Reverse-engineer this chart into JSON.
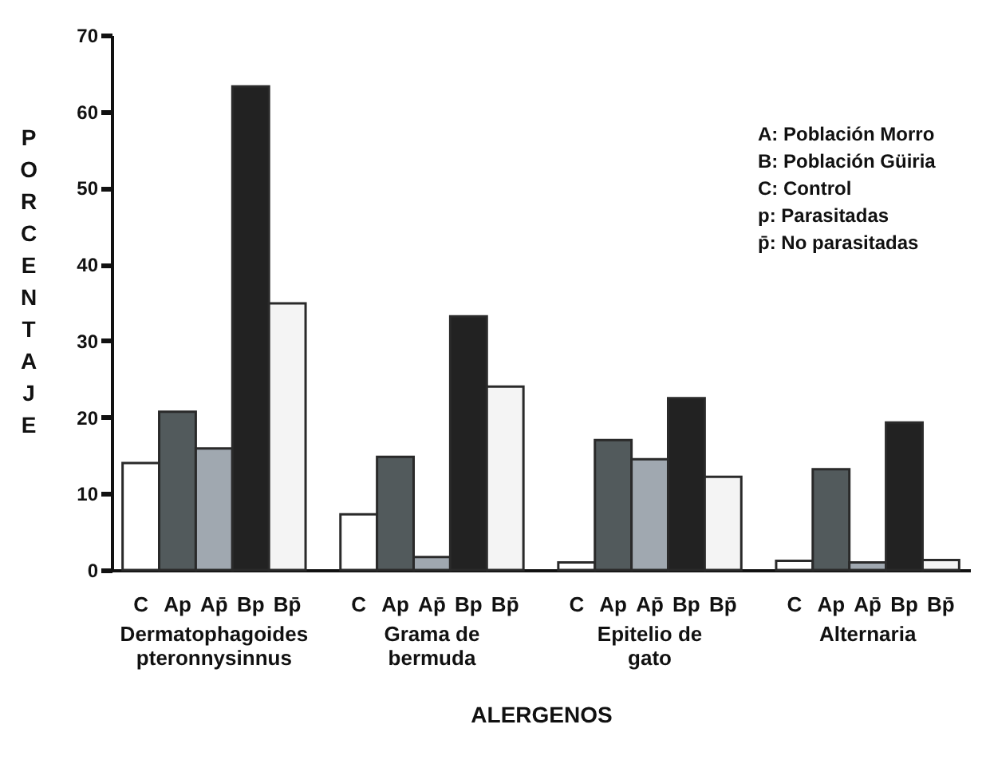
{
  "chart_data": {
    "type": "bar",
    "xlabel": "ALERGENOS",
    "ylabel": "PORCENTAJE",
    "categories": [
      "Dermatophagoides pteronnysinnus",
      "Grama de bermuda",
      "Epitelio de gato",
      "Alternaria"
    ],
    "series": [
      {
        "name": "C",
        "color": "#ffffff",
        "values": [
          14,
          7.3,
          1,
          1.2
        ]
      },
      {
        "name": "Ap",
        "color": "#525a5c",
        "values": [
          20.7,
          14.8,
          17,
          13.2
        ]
      },
      {
        "name": "Ap̄",
        "color": "#a0a8b0",
        "values": [
          15.9,
          1.7,
          14.5,
          1
        ]
      },
      {
        "name": "Bp",
        "color": "#222222",
        "values": [
          63.3,
          33.2,
          22.5,
          19.3
        ]
      },
      {
        "name": "Bp̄",
        "color": "#f4f4f4",
        "values": [
          34.9,
          24,
          12.2,
          1.3
        ]
      }
    ],
    "ylim": [
      0,
      70
    ],
    "yticks": [
      0,
      10,
      20,
      30,
      40,
      50,
      60,
      70
    ],
    "grid": false,
    "annotations": [
      "A: Población Morro",
      "B: Población Güiria",
      "C: Control",
      "p: Parasitadas",
      "p̄: No parasitadas"
    ]
  }
}
